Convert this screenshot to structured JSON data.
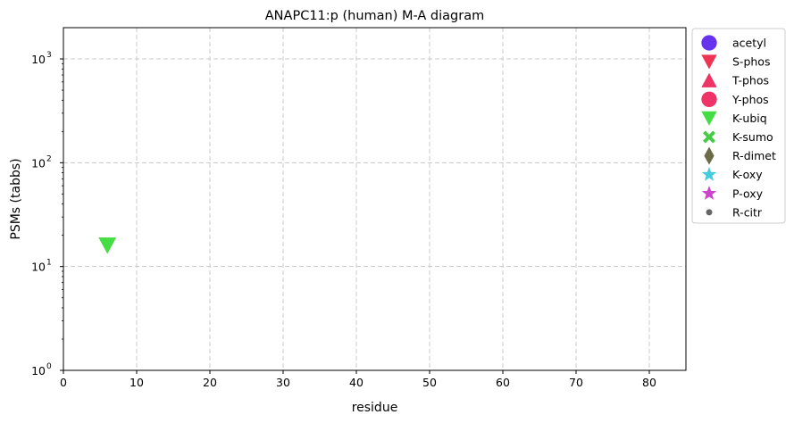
{
  "chart_data": {
    "type": "scatter",
    "title": "ANAPC11:p (human) M-A diagram",
    "xlabel": "residue",
    "ylabel": "PSMs (tabbs)",
    "xlim": [
      0,
      85
    ],
    "ylim": [
      1,
      2000
    ],
    "yscale": "log",
    "grid": true,
    "grid_style": "dashed",
    "legend_position": "outside-right",
    "x_ticks": [
      "0",
      "10",
      "20",
      "30",
      "40",
      "50",
      "60",
      "70",
      "80"
    ],
    "x_tick_values": [
      0,
      10,
      20,
      30,
      40,
      50,
      60,
      70,
      80
    ],
    "y_ticks": [
      {
        "value": 1,
        "base": "10",
        "exp": "0"
      },
      {
        "value": 10,
        "base": "10",
        "exp": "1"
      },
      {
        "value": 100,
        "base": "10",
        "exp": "2"
      },
      {
        "value": 1000,
        "base": "10",
        "exp": "3"
      }
    ],
    "series": [
      {
        "name": "acetyl",
        "marker": "circle",
        "color": "#6633ee",
        "points": []
      },
      {
        "name": "S-phos",
        "marker": "triangle-down",
        "color": "#ee3355",
        "points": []
      },
      {
        "name": "T-phos",
        "marker": "triangle-up",
        "color": "#ee3366",
        "points": []
      },
      {
        "name": "Y-phos",
        "marker": "circle",
        "color": "#ee3366",
        "points": []
      },
      {
        "name": "K-ubiq",
        "marker": "triangle-down",
        "color": "#44dd44",
        "points": [
          {
            "x": 6,
            "y": 16
          }
        ]
      },
      {
        "name": "K-sumo",
        "marker": "x",
        "color": "#44cc44",
        "points": []
      },
      {
        "name": "R-dimet",
        "marker": "diamond",
        "color": "#6b6b47",
        "points": []
      },
      {
        "name": "K-oxy",
        "marker": "star",
        "color": "#44ccdd",
        "points": []
      },
      {
        "name": "P-oxy",
        "marker": "star",
        "color": "#cc44cc",
        "points": []
      },
      {
        "name": "R-citr",
        "marker": "dot",
        "color": "#666666",
        "points": []
      }
    ]
  }
}
